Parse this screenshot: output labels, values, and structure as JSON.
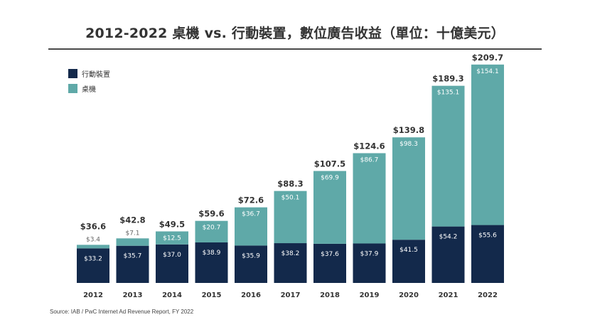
{
  "title": "2012-2022 桌機 vs. 行動裝置，數位廣告收益（單位：十億美元）",
  "source": "Source: IAB / PwC Internet Ad Revenue Report, FY 2022",
  "colors": {
    "mobile": "#13294b",
    "desktop": "#5fa9a8",
    "text": "#333333"
  },
  "chart_data": {
    "type": "bar",
    "stacked": true,
    "categories": [
      "2012",
      "2013",
      "2014",
      "2015",
      "2016",
      "2017",
      "2018",
      "2019",
      "2020",
      "2021",
      "2022"
    ],
    "series": [
      {
        "name": "行動裝置",
        "values": [
          33.2,
          35.7,
          37.0,
          38.9,
          35.9,
          38.2,
          37.6,
          37.9,
          41.5,
          54.2,
          55.6
        ],
        "labels": [
          "$33.2",
          "$35.7",
          "$37.0",
          "$38.9",
          "$35.9",
          "$38.2",
          "$37.6",
          "$37.9",
          "$41.5",
          "$54.2",
          "$55.6"
        ]
      },
      {
        "name": "桌機",
        "values": [
          3.4,
          7.1,
          12.5,
          20.7,
          36.7,
          50.1,
          69.9,
          86.7,
          98.3,
          135.1,
          154.1
        ],
        "labels": [
          "$3.4",
          "$7.1",
          "$12.5",
          "$20.7",
          "$36.7",
          "$50.1",
          "$69.9",
          "$86.7",
          "$98.3",
          "$135.1",
          "$154.1"
        ]
      }
    ],
    "totals": [
      36.6,
      42.8,
      49.5,
      59.6,
      72.6,
      88.3,
      107.5,
      124.6,
      139.8,
      189.3,
      209.7
    ],
    "total_labels": [
      "$36.6",
      "$42.8",
      "$49.5",
      "$59.6",
      "$72.6",
      "$88.3",
      "$107.5",
      "$124.6",
      "$139.8",
      "$189.3",
      "$209.7"
    ],
    "legend_position": "top-left",
    "grid": false
  }
}
